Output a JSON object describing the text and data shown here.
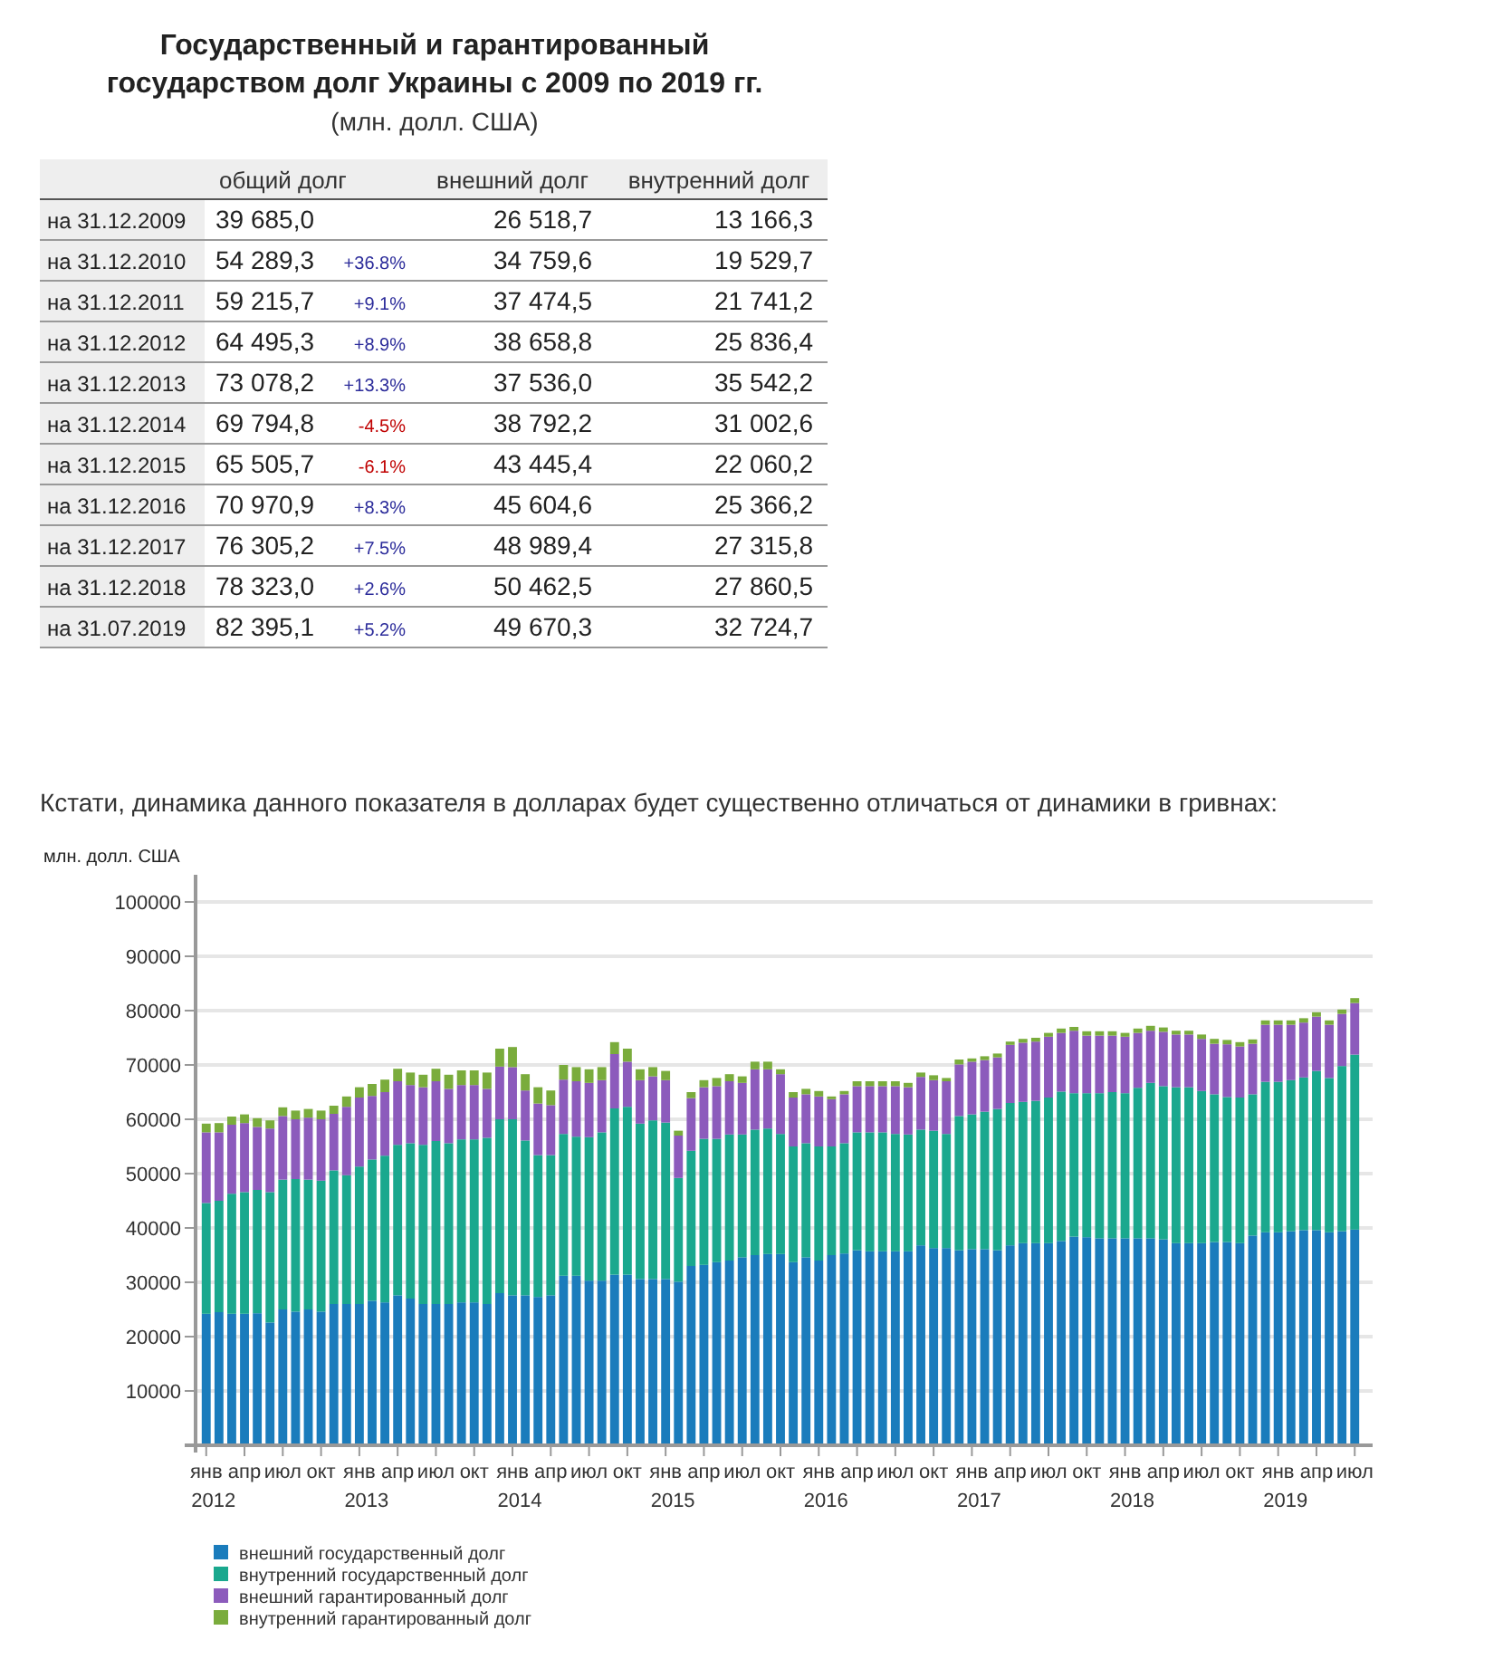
{
  "chart_data": [
    {
      "type": "heatmap",
      "title": "Государственный и гарантированный государством долг Украины с 2009 по 2019 гг.",
      "subtitle": "(млн. долл. США)",
      "categories": [
        "общий долг",
        null,
        "внешний долг",
        "внутренний долг"
      ],
      "y_categories": [
        "на 31.12.2009",
        "на 31.12.2010",
        "на 31.12.2011",
        "на 31.12.2012",
        "на 31.12.2013",
        "на 31.12.2014",
        "на 31.12.2015",
        "на 31.12.2016",
        "на 31.12.2017",
        "на 31.12.2018",
        "на 31.07.2019"
      ],
      "cells": [
        [
          39685.0,
          null,
          26518.7,
          13166.3
        ],
        [
          54289.3,
          36.8,
          34759.6,
          19529.7
        ],
        [
          59215.7,
          9.1,
          37474.5,
          21741.2
        ],
        [
          64495.3,
          8.9,
          38658.8,
          25836.4
        ],
        [
          73078.2,
          13.3,
          37536.0,
          35542.2
        ],
        [
          69794.8,
          -4.5,
          38792.2,
          31002.6
        ],
        [
          65505.7,
          -6.1,
          43445.4,
          22060.2
        ],
        [
          70970.9,
          8.3,
          45604.6,
          25366.2
        ],
        [
          76305.2,
          7.5,
          48989.4,
          27315.8
        ],
        [
          78323.0,
          2.6,
          50462.5,
          27860.5
        ],
        [
          82395.1,
          5.2,
          49670.3,
          32724.7
        ]
      ],
      "cell_labels": [
        [
          "39 685,0",
          null,
          "26 518,7",
          "13 166,3"
        ],
        [
          "54 289,3",
          "+36.8%",
          "34 759,6",
          "19 529,7"
        ],
        [
          "59 215,7",
          "+9.1%",
          "37 474,5",
          "21 741,2"
        ],
        [
          "64 495,3",
          "+8.9%",
          "38 658,8",
          "25 836,4"
        ],
        [
          "73 078,2",
          "+13.3%",
          "37 536,0",
          "35 542,2"
        ],
        [
          "69 794,8",
          "-4.5%",
          "38 792,2",
          "31 002,6"
        ],
        [
          "65 505,7",
          "-6.1%",
          "43 445,4",
          "22 060,2"
        ],
        [
          "70 970,9",
          "+8.3%",
          "45 604,6",
          "25 366,2"
        ],
        [
          "76 305,2",
          "+7.5%",
          "48 989,4",
          "27 315,8"
        ],
        [
          "78 323,0",
          "+2.6%",
          "50 462,5",
          "27 860,5"
        ],
        [
          "82 395,1",
          "+5.2%",
          "49 670,3",
          "32 724,7"
        ]
      ]
    },
    {
      "type": "bar",
      "stacked": true,
      "title": "Кстати, динамика данного показателя в долларах будет существенно отличаться от динамики в гривнах:",
      "ylabel": "млн. долл. США",
      "categories": [
        "янв\n2012",
        null,
        null,
        "апр",
        null,
        null,
        "июл",
        null,
        null,
        "окт",
        null,
        null,
        "янв\n2013",
        null,
        null,
        "апр",
        null,
        null,
        "июл",
        null,
        null,
        "окт",
        null,
        null,
        "янв\n2014",
        null,
        null,
        "апр",
        null,
        null,
        "июл",
        null,
        null,
        "окт",
        null,
        null,
        "янв\n2015",
        null,
        null,
        "апр",
        null,
        null,
        "июл",
        null,
        null,
        "окт",
        null,
        null,
        "янв\n2016",
        null,
        null,
        "апр",
        null,
        null,
        "июл",
        null,
        null,
        "окт",
        null,
        null,
        "янв\n2017",
        null,
        null,
        "апр",
        null,
        null,
        "июл",
        null,
        null,
        "окт",
        null,
        null,
        "янв\n2018",
        null,
        null,
        "апр",
        null,
        null,
        "июл",
        null,
        null,
        "окт",
        null,
        null,
        "янв\n2019",
        null,
        null,
        "апр",
        null,
        null,
        "июл"
      ],
      "ylim": [
        0,
        105000
      ],
      "yticks": [
        {
          "value": 0,
          "label": null
        },
        10000,
        20000,
        30000,
        40000,
        50000,
        60000,
        70000,
        80000,
        90000,
        100000
      ],
      "grid": "y",
      "legend": "bottom left",
      "series": [
        {
          "name": "внешний государственный долг",
          "color": "#1a7cbc",
          "values": [
            24200,
            24500,
            24200,
            24200,
            24300,
            22600,
            25000,
            24600,
            25000,
            24600,
            26000,
            26000,
            26000,
            26600,
            26300,
            27600,
            27000,
            26000,
            26000,
            26000,
            26300,
            26300,
            26000,
            28000,
            27600,
            27600,
            27300,
            27600,
            31200,
            31200,
            30300,
            30300,
            31400,
            31400,
            30600,
            30600,
            30600,
            30100,
            33000,
            33200,
            33700,
            34000,
            34600,
            35000,
            35200,
            35200,
            33700,
            34600,
            34000,
            35000,
            35300,
            35900,
            35700,
            35700,
            35700,
            35700,
            36800,
            36300,
            36300,
            35900,
            36100,
            36100,
            35900,
            36800,
            37200,
            37200,
            37200,
            37600,
            38400,
            38300,
            38100,
            38100,
            38100,
            38100,
            38100,
            37900,
            37200,
            37200,
            37200,
            37400,
            37400,
            37200,
            38600,
            39200,
            39200,
            39400,
            39600,
            39600,
            39200,
            39400,
            39700
          ]
        },
        {
          "name": "внутренний государственный долг",
          "color": "#1aa88e",
          "values": [
            20400,
            20500,
            22100,
            22400,
            22700,
            24000,
            23900,
            24400,
            23900,
            24100,
            24600,
            23700,
            25300,
            26000,
            27000,
            27700,
            28600,
            29300,
            30000,
            29600,
            30000,
            30000,
            30600,
            32000,
            32400,
            28500,
            26100,
            25800,
            26100,
            25600,
            26400,
            27300,
            30600,
            30900,
            28600,
            29200,
            28800,
            19100,
            21200,
            23200,
            22700,
            23200,
            22600,
            23100,
            23100,
            22100,
            21300,
            21000,
            21000,
            20000,
            20300,
            21700,
            21900,
            21900,
            21600,
            21500,
            21300,
            21600,
            21000,
            24700,
            24800,
            25300,
            26000,
            26200,
            26000,
            26200,
            26800,
            27500,
            26400,
            26500,
            26700,
            26900,
            26700,
            27700,
            28600,
            28200,
            28700,
            28700,
            28000,
            27200,
            26700,
            26800,
            26000,
            27700,
            27700,
            27800,
            28100,
            29300,
            28400,
            30400,
            32200
          ]
        },
        {
          "name": "внешний гарантированный долг",
          "color": "#8c5bbc",
          "values": [
            13000,
            12600,
            12700,
            12700,
            11600,
            11700,
            11700,
            11000,
            11400,
            11300,
            10400,
            12600,
            12700,
            11700,
            11700,
            11700,
            10700,
            10600,
            11000,
            10000,
            10000,
            10000,
            9000,
            9700,
            9600,
            9200,
            9500,
            9200,
            10000,
            10200,
            10000,
            9600,
            10000,
            8300,
            8000,
            8100,
            7800,
            7800,
            9700,
            9500,
            9700,
            9800,
            9500,
            11100,
            10900,
            11000,
            9000,
            9000,
            9200,
            8700,
            9000,
            8500,
            8500,
            8500,
            8800,
            8700,
            9700,
            9300,
            9700,
            9500,
            9700,
            9500,
            9500,
            10700,
            10900,
            10900,
            11200,
            10800,
            11500,
            10600,
            10600,
            10400,
            10400,
            10100,
            9600,
            10000,
            9700,
            9700,
            9600,
            9300,
            9700,
            9400,
            9300,
            10500,
            10500,
            10200,
            10100,
            10000,
            9800,
            9600,
            9500
          ]
        },
        {
          "name": "внутренний гарантированный долг",
          "color": "#7aac3c",
          "values": [
            1600,
            1700,
            1500,
            1600,
            1600,
            1500,
            1600,
            1600,
            1600,
            1600,
            1500,
            1900,
            1900,
            2200,
            2300,
            2300,
            2300,
            2300,
            2300,
            2600,
            2700,
            2700,
            3000,
            3300,
            3700,
            3000,
            3000,
            2700,
            2700,
            2600,
            2500,
            2400,
            2200,
            2400,
            2000,
            1700,
            1700,
            900,
            1100,
            1300,
            1500,
            1300,
            1200,
            1400,
            1400,
            900,
            1000,
            1000,
            1000,
            500,
            600,
            900,
            900,
            900,
            900,
            800,
            800,
            900,
            600,
            900,
            600,
            700,
            700,
            600,
            700,
            700,
            700,
            800,
            700,
            800,
            800,
            800,
            700,
            800,
            900,
            800,
            700,
            700,
            800,
            900,
            800,
            800,
            800,
            800,
            800,
            800,
            800,
            800,
            800,
            800,
            900
          ]
        }
      ]
    }
  ]
}
